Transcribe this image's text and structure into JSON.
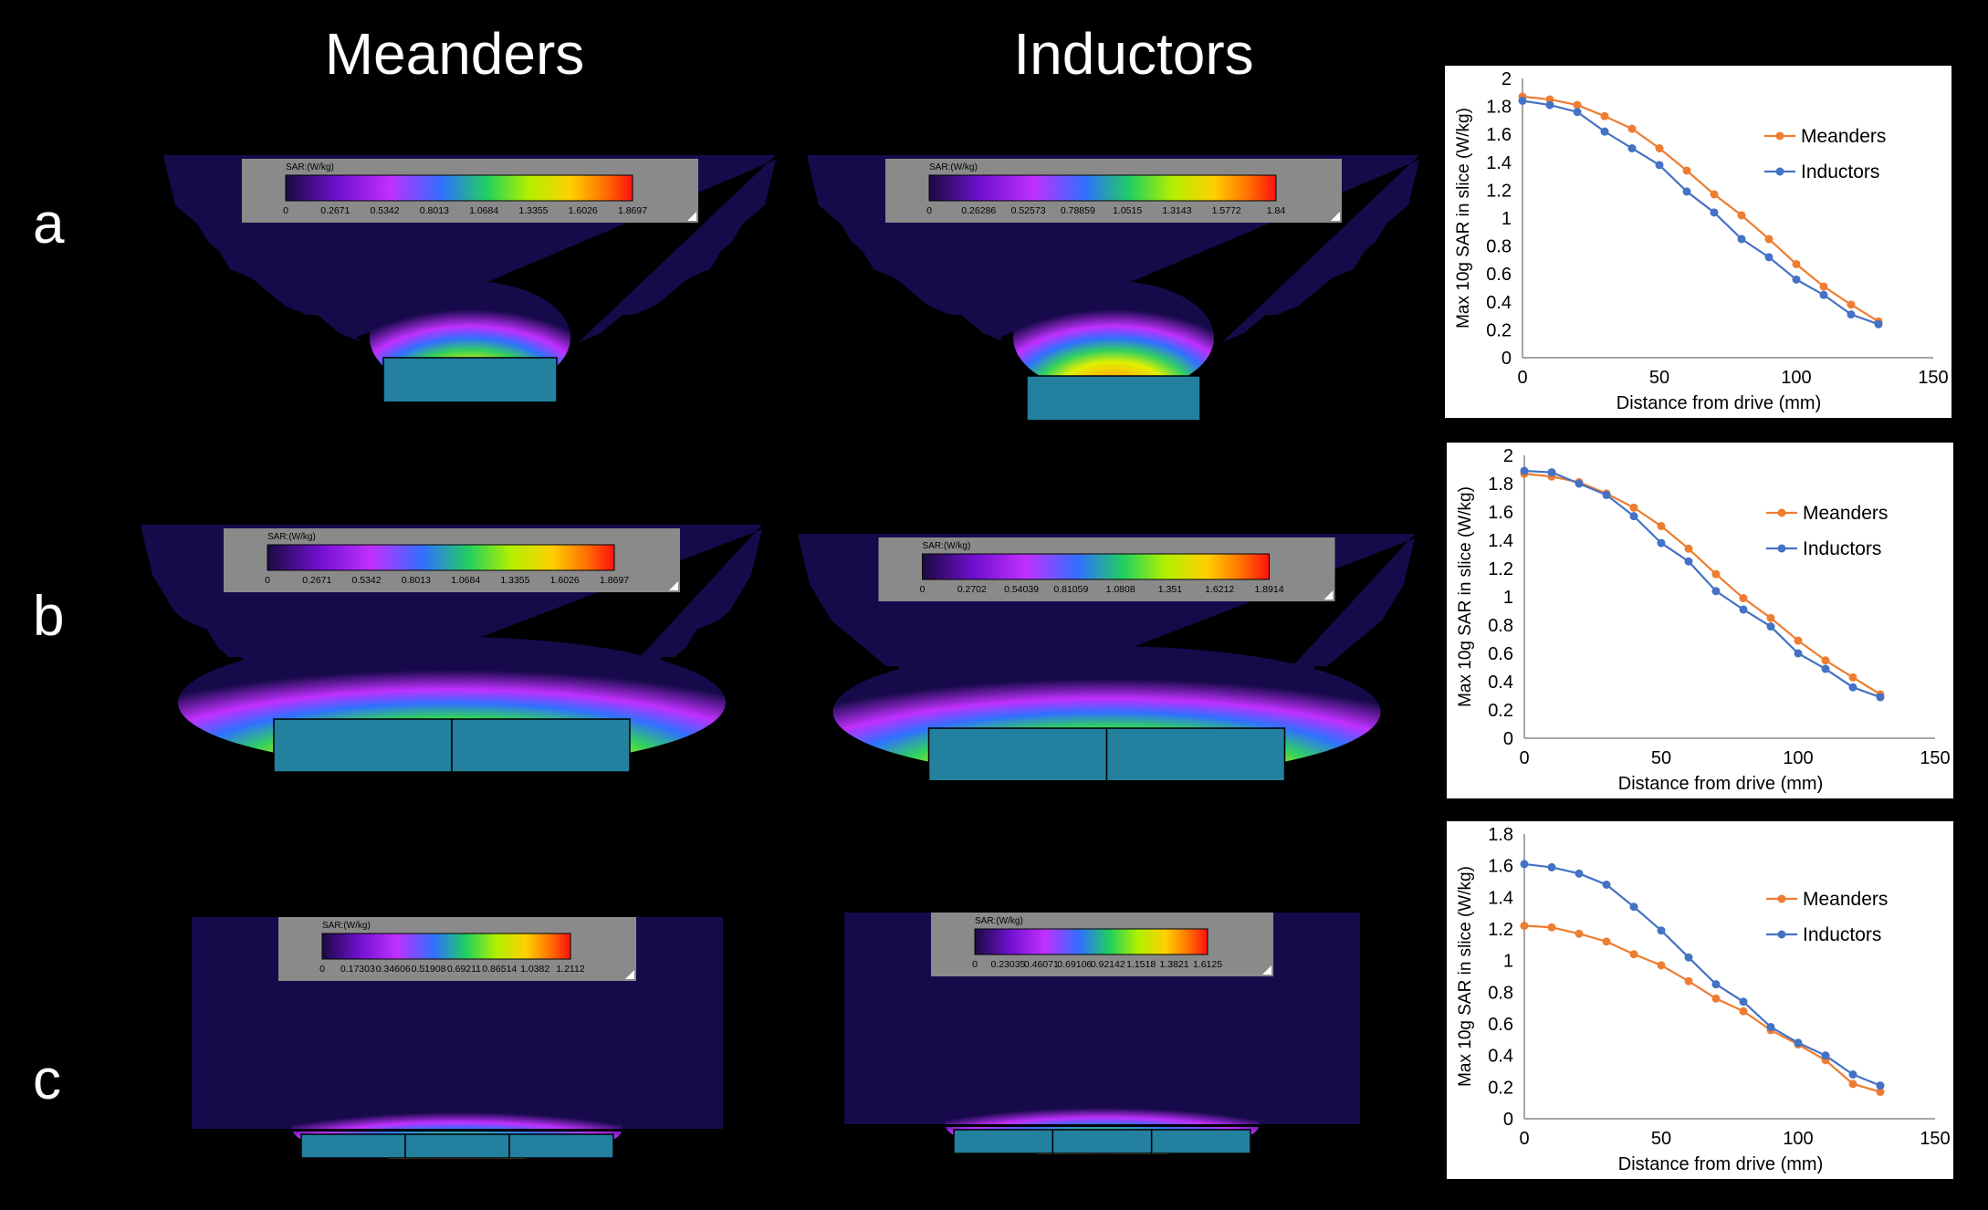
{
  "columns": {
    "meanders": "Meanders",
    "inductors": "Inductors"
  },
  "rows": [
    "a",
    "b",
    "c"
  ],
  "colors": {
    "background": "#000000",
    "tissue": "#170a4a",
    "coil": "#23809e",
    "meanders_line": "#ed7d31",
    "inductors_line": "#4472c4"
  },
  "simulations": [
    {
      "row": "a",
      "col": "meanders",
      "shape": "bowl",
      "coil_segments": 1,
      "bar_title": "SAR:(W/kg)",
      "ticks": [
        "0",
        "0.2671",
        "0.5342",
        "0.8013",
        "1.0684",
        "1.3355",
        "1.6026",
        "1.8697"
      ]
    },
    {
      "row": "a",
      "col": "inductors",
      "shape": "bowl",
      "coil_segments": 1,
      "bar_title": "SAR:(W/kg)",
      "ticks": [
        "0",
        "0.26286",
        "0.52573",
        "0.78859",
        "1.0515",
        "1.3143",
        "1.5772",
        "1.84"
      ]
    },
    {
      "row": "b",
      "col": "meanders",
      "shape": "bowl-wide",
      "coil_segments": 2,
      "bar_title": "SAR:(W/kg)",
      "ticks": [
        "0",
        "0.2671",
        "0.5342",
        "0.8013",
        "1.0684",
        "1.3355",
        "1.6026",
        "1.8697"
      ]
    },
    {
      "row": "b",
      "col": "inductors",
      "shape": "bowl-wide",
      "coil_segments": 2,
      "bar_title": "SAR:(W/kg)",
      "ticks": [
        "0",
        "0.2702",
        "0.54039",
        "0.81059",
        "1.0808",
        "1.351",
        "1.6212",
        "1.8914"
      ]
    },
    {
      "row": "c",
      "col": "meanders",
      "shape": "slab",
      "coil_segments": 3,
      "bar_title": "SAR:(W/kg)",
      "ticks": [
        "0",
        "0.17303",
        "0.34606",
        "0.51908",
        "0.69211",
        "0.86514",
        "1.0382",
        "1.2112"
      ]
    },
    {
      "row": "c",
      "col": "inductors",
      "shape": "slab",
      "coil_segments": 3,
      "bar_title": "SAR:(W/kg)",
      "ticks": [
        "0",
        "0.23035",
        "0.46071",
        "0.69106",
        "0.92142",
        "1.1518",
        "1.3821",
        "1.6125"
      ]
    }
  ],
  "chart_data": [
    {
      "type": "line",
      "row": "a",
      "xlabel": "Distance from drive (mm)",
      "ylabel": "Max 10g SAR in slice (W/kg)",
      "xlim": [
        0,
        150
      ],
      "ylim": [
        0,
        2
      ],
      "xticks": [
        "0",
        "50",
        "100",
        "150"
      ],
      "yticks": [
        "0",
        "0.2",
        "0.4",
        "0.6",
        "0.8",
        "1",
        "1.2",
        "1.4",
        "1.6",
        "1.8",
        "2"
      ],
      "legend": "right",
      "grid": false,
      "x": [
        0,
        10,
        20,
        30,
        40,
        50,
        60,
        70,
        80,
        90,
        100,
        110,
        120,
        130
      ],
      "series": [
        {
          "name": "Meanders",
          "color": "#ed7d31",
          "values": [
            1.87,
            1.85,
            1.81,
            1.73,
            1.64,
            1.5,
            1.34,
            1.17,
            1.02,
            0.85,
            0.67,
            0.51,
            0.38,
            0.26
          ]
        },
        {
          "name": "Inductors",
          "color": "#4472c4",
          "values": [
            1.84,
            1.81,
            1.76,
            1.62,
            1.5,
            1.38,
            1.19,
            1.04,
            0.85,
            0.72,
            0.56,
            0.45,
            0.31,
            0.24
          ]
        }
      ]
    },
    {
      "type": "line",
      "row": "b",
      "xlabel": "Distance from drive (mm)",
      "ylabel": "Max 10g SAR in slice (W/kg)",
      "xlim": [
        0,
        150
      ],
      "ylim": [
        0,
        2
      ],
      "xticks": [
        "0",
        "50",
        "100",
        "150"
      ],
      "yticks": [
        "0",
        "0.2",
        "0.4",
        "0.6",
        "0.8",
        "1",
        "1.2",
        "1.4",
        "1.6",
        "1.8",
        "2"
      ],
      "legend": "right",
      "grid": false,
      "x": [
        0,
        10,
        20,
        30,
        40,
        50,
        60,
        70,
        80,
        90,
        100,
        110,
        120,
        130
      ],
      "series": [
        {
          "name": "Meanders",
          "color": "#ed7d31",
          "values": [
            1.87,
            1.85,
            1.81,
            1.73,
            1.63,
            1.5,
            1.34,
            1.16,
            0.99,
            0.85,
            0.69,
            0.55,
            0.43,
            0.31
          ]
        },
        {
          "name": "Inductors",
          "color": "#4472c4",
          "values": [
            1.89,
            1.88,
            1.8,
            1.72,
            1.57,
            1.38,
            1.25,
            1.04,
            0.91,
            0.79,
            0.6,
            0.49,
            0.36,
            0.29
          ]
        }
      ]
    },
    {
      "type": "line",
      "row": "c",
      "xlabel": "Distance from drive (mm)",
      "ylabel": "Max 10g SAR in slice (W/kg)",
      "xlim": [
        0,
        150
      ],
      "ylim": [
        0,
        1.8
      ],
      "xticks": [
        "0",
        "50",
        "100",
        "150"
      ],
      "yticks": [
        "0",
        "0.2",
        "0.4",
        "0.6",
        "0.8",
        "1",
        "1.2",
        "1.4",
        "1.6",
        "1.8"
      ],
      "legend": "right",
      "grid": false,
      "x": [
        0,
        10,
        20,
        30,
        40,
        50,
        60,
        70,
        80,
        90,
        100,
        110,
        120,
        130
      ],
      "series": [
        {
          "name": "Meanders",
          "color": "#ed7d31",
          "values": [
            1.22,
            1.21,
            1.17,
            1.12,
            1.04,
            0.97,
            0.87,
            0.76,
            0.68,
            0.56,
            0.47,
            0.37,
            0.22,
            0.17
          ]
        },
        {
          "name": "Inductors",
          "color": "#4472c4",
          "values": [
            1.61,
            1.59,
            1.55,
            1.48,
            1.34,
            1.19,
            1.02,
            0.85,
            0.74,
            0.58,
            0.48,
            0.4,
            0.28,
            0.21
          ]
        }
      ]
    }
  ]
}
